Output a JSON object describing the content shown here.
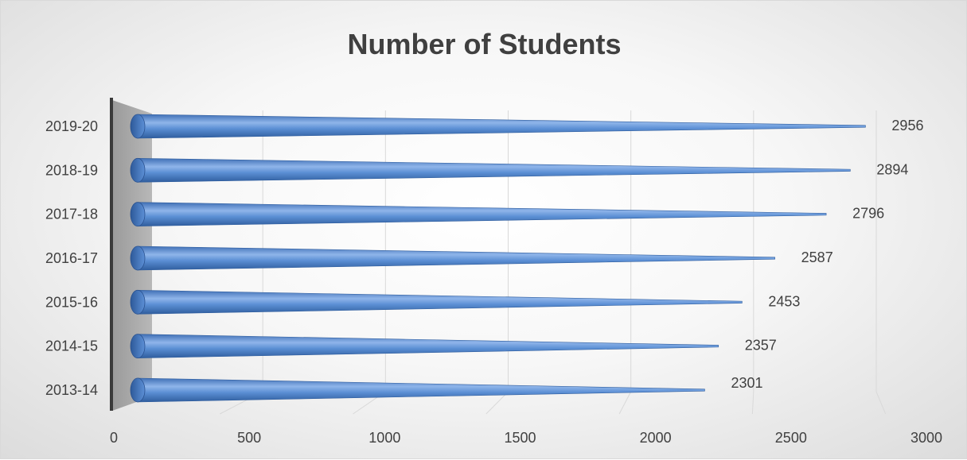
{
  "chart_data": {
    "type": "bar",
    "orientation": "horizontal",
    "style": "3d-cone",
    "title": "Number of Students",
    "xlabel": "",
    "ylabel": "",
    "categories": [
      "2013-14",
      "2014-15",
      "2015-16",
      "2016-17",
      "2017-18",
      "2018-19",
      "2019-20"
    ],
    "values": [
      2301,
      2357,
      2453,
      2587,
      2796,
      2894,
      2956
    ],
    "data_labels": [
      "2301",
      "2357",
      "2453",
      "2587",
      "2796",
      "2894",
      "2956"
    ],
    "xlim": [
      0,
      3000
    ],
    "xticks": [
      0,
      500,
      1000,
      1500,
      2000,
      2500,
      3000
    ],
    "xtick_labels": [
      "0",
      "500",
      "1000",
      "1500",
      "2000",
      "2500",
      "3000"
    ],
    "grid": "vertical",
    "legend": "none",
    "bar_color": "#5b8fd4"
  }
}
